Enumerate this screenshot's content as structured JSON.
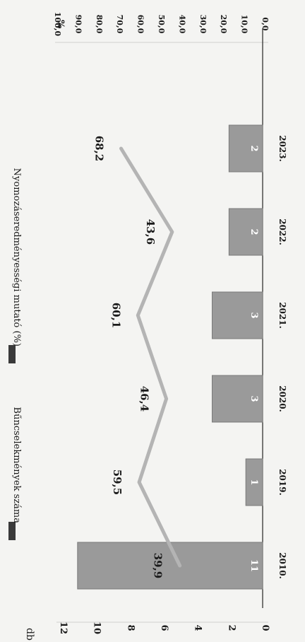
{
  "chart_data": {
    "type": "bar",
    "categories": [
      "2010.",
      "2019.",
      "2020.",
      "2021.",
      "2022.",
      "2023."
    ],
    "series": [
      {
        "name": "Bűncselekmények száma",
        "type": "bar",
        "axis": "left",
        "values": [
          11,
          1,
          3,
          3,
          2,
          2
        ],
        "data_labels": [
          "11",
          "1",
          "3",
          "3",
          "2",
          "2"
        ],
        "color": "#9a9a9a"
      },
      {
        "name": "Nyomozáseredményességi mutató (%)",
        "type": "line",
        "axis": "right",
        "values": [
          39.9,
          59.5,
          46.4,
          60.1,
          43.6,
          68.2
        ],
        "data_labels": [
          "39,9",
          "59,5",
          "46,4",
          "60,1",
          "43,6",
          "68,2"
        ],
        "color": "#b4b4b4"
      }
    ],
    "y_left": {
      "unit_label": "db",
      "range": [
        0,
        12
      ],
      "ticks": [
        "0",
        "2",
        "4",
        "6",
        "8",
        "10",
        "12"
      ]
    },
    "y_right": {
      "unit_label": "%",
      "range": [
        0,
        100
      ],
      "ticks": [
        "0,0",
        "10,0",
        "20,0",
        "30,0",
        "40,0",
        "50,0",
        "60,0",
        "70,0",
        "80,0",
        "90,0",
        "100,0"
      ]
    },
    "orientation": "rotated-90-clockwise",
    "grid": false,
    "legend_position": "top"
  }
}
